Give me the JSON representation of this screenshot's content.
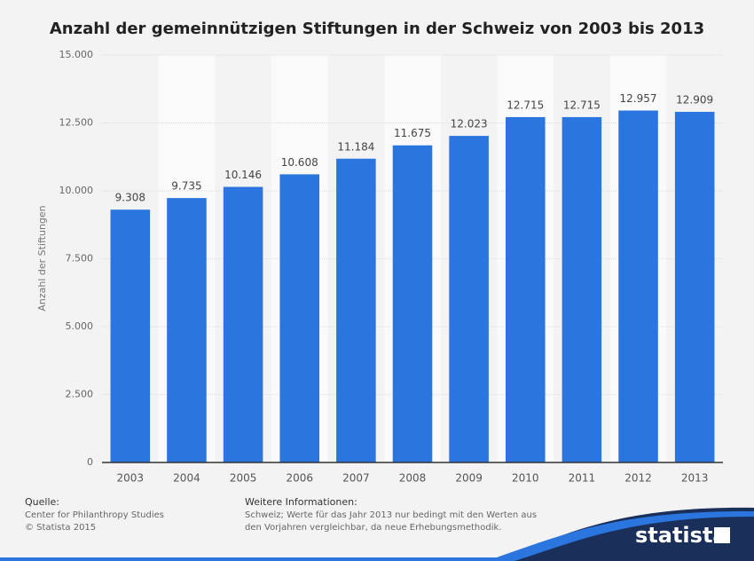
{
  "chart_data": {
    "type": "bar",
    "title": "Anzahl der gemeinnützigen Stiftungen in der Schweiz von 2003 bis 2013",
    "y_label": "Anzahl der Stiftungen",
    "categories": [
      "2003",
      "2004",
      "2005",
      "2006",
      "2007",
      "2008",
      "2009",
      "2010",
      "2011",
      "2012",
      "2013"
    ],
    "values": [
      9308,
      9735,
      10146,
      10608,
      11184,
      11675,
      12023,
      12715,
      12715,
      12957,
      12909
    ],
    "value_labels": [
      "9.308",
      "9.735",
      "10.146",
      "10.608",
      "11.184",
      "11.675",
      "12.023",
      "12.715",
      "12.715",
      "12.957",
      "12.909"
    ],
    "color": "#2a75de",
    "ylim": [
      0,
      15000
    ],
    "yticks": [
      0,
      {
        "value": 2500,
        "label": "2.500"
      },
      {
        "value": 5000,
        "label": "5.000"
      },
      {
        "value": 7500,
        "label": "7.500"
      },
      {
        "value": 10000,
        "label": "10.000"
      },
      {
        "value": 12500,
        "label": "12.500"
      },
      {
        "value": 15000,
        "label": "15.000"
      }
    ],
    "grid": true,
    "source_label": "Quelle:",
    "source": "Center for Philanthropy Studies",
    "copyright": "© Statista 2015",
    "info_label": "Weitere Informationen:",
    "info": [
      "Schweiz; Werte für das Jahr 2013 nur bedingt mit den Werten aus",
      "den Vorjahren vergleichbar, da neue Erhebungsmethodik."
    ],
    "logo": "statista"
  }
}
